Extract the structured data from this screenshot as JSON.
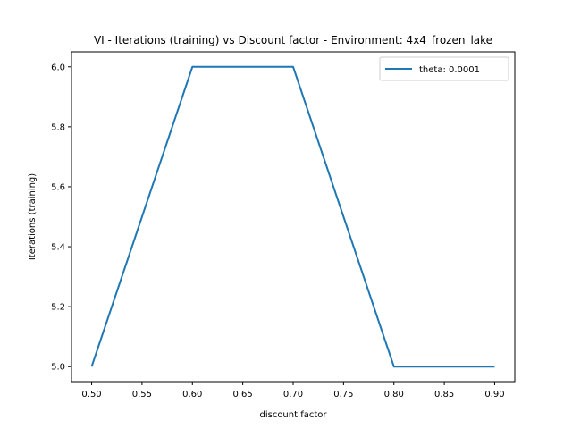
{
  "chart_data": {
    "type": "line",
    "title": "VI - Iterations (training) vs Discount factor - Environment: 4x4_frozen_lake",
    "xlabel": "discount factor",
    "ylabel": "Iterations (training)",
    "x": [
      0.5,
      0.6,
      0.7,
      0.8,
      0.9
    ],
    "series": [
      {
        "name": "theta: 0.0001",
        "values": [
          5,
          6,
          6,
          5,
          5
        ],
        "color": "#1f77b4"
      }
    ],
    "xlim": [
      0.48,
      0.92
    ],
    "ylim": [
      4.95,
      6.05
    ],
    "xticks": [
      0.5,
      0.55,
      0.6,
      0.65,
      0.7,
      0.75,
      0.8,
      0.85,
      0.9
    ],
    "xtick_labels": [
      "0.50",
      "0.55",
      "0.60",
      "0.65",
      "0.70",
      "0.75",
      "0.80",
      "0.85",
      "0.90"
    ],
    "yticks": [
      5.0,
      5.2,
      5.4,
      5.6,
      5.8,
      6.0
    ],
    "ytick_labels": [
      "5.0",
      "5.2",
      "5.4",
      "5.6",
      "5.8",
      "6.0"
    ],
    "grid": false,
    "legend_position": "upper right"
  }
}
